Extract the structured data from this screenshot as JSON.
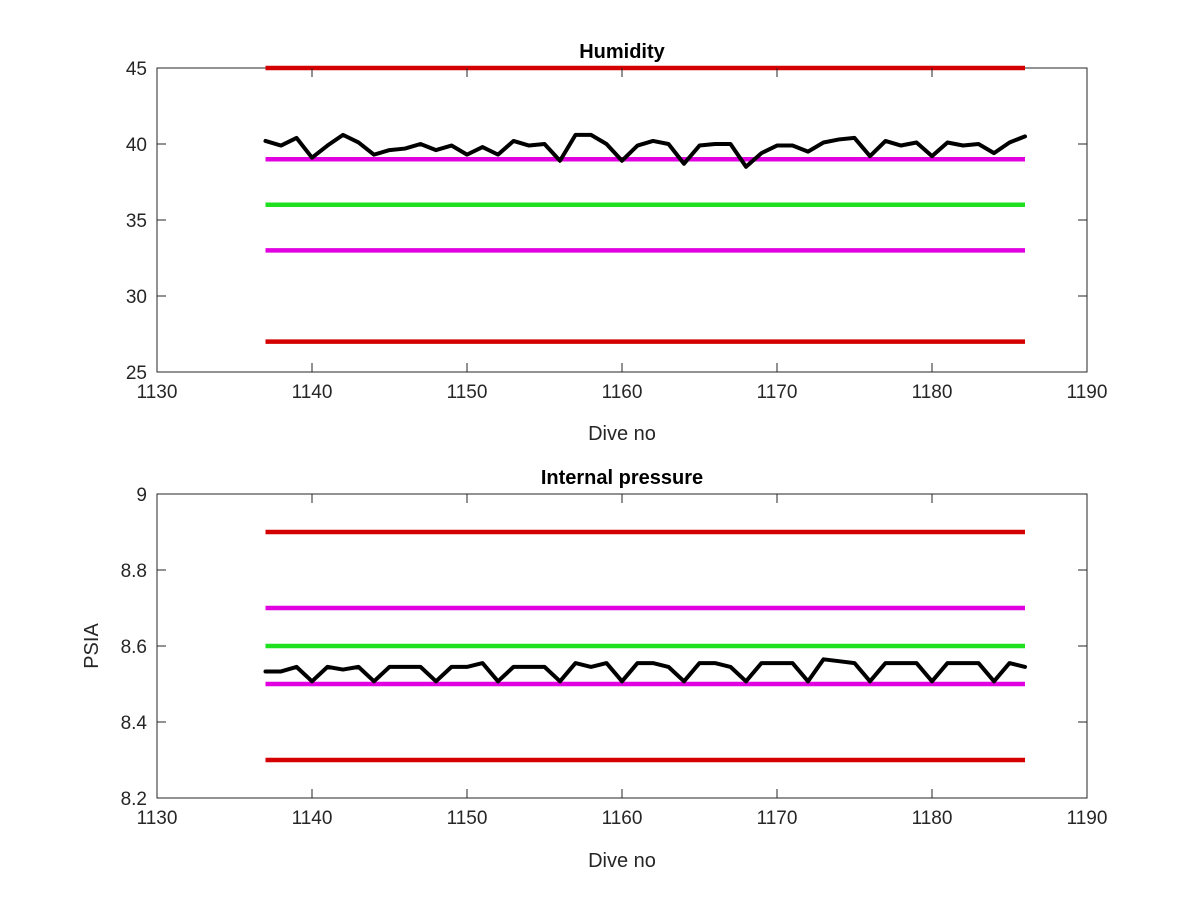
{
  "chart_data": [
    {
      "type": "line",
      "title": "Humidity",
      "xlabel": "Dive no",
      "ylabel": "",
      "xlim": [
        1130,
        1190
      ],
      "ylim": [
        25,
        45
      ],
      "xticks": [
        1130,
        1140,
        1150,
        1160,
        1170,
        1180,
        1190
      ],
      "yticks": [
        25,
        30,
        35,
        40,
        45
      ],
      "grid": false,
      "limit_lines": [
        {
          "y": 45,
          "x": [
            1137,
            1186
          ],
          "color": "#d40000"
        },
        {
          "y": 39,
          "x": [
            1137,
            1186
          ],
          "color": "#e000e0"
        },
        {
          "y": 36,
          "x": [
            1137,
            1186
          ],
          "color": "#1ee01e"
        },
        {
          "y": 33,
          "x": [
            1137,
            1186
          ],
          "color": "#e000e0"
        },
        {
          "y": 27,
          "x": [
            1137,
            1186
          ],
          "color": "#d40000"
        }
      ],
      "series": [
        {
          "color": "#000000",
          "x": [
            1137,
            1138,
            1139,
            1140,
            1141,
            1142,
            1143,
            1144,
            1145,
            1146,
            1147,
            1148,
            1149,
            1150,
            1151,
            1152,
            1153,
            1154,
            1155,
            1156,
            1157,
            1158,
            1159,
            1160,
            1161,
            1162,
            1163,
            1164,
            1165,
            1166,
            1167,
            1168,
            1169,
            1170,
            1171,
            1172,
            1173,
            1174,
            1175,
            1176,
            1177,
            1178,
            1179,
            1180,
            1181,
            1182,
            1183,
            1184,
            1185,
            1186
          ],
          "y": [
            40.2,
            39.9,
            40.4,
            39.1,
            39.9,
            40.6,
            40.1,
            39.3,
            39.6,
            39.7,
            40.0,
            39.6,
            39.9,
            39.3,
            39.8,
            39.3,
            40.2,
            39.9,
            40.0,
            38.9,
            40.6,
            40.6,
            40.0,
            38.9,
            39.9,
            40.2,
            40.0,
            38.7,
            39.9,
            40.0,
            40.0,
            38.5,
            39.4,
            39.9,
            39.9,
            39.5,
            40.1,
            40.3,
            40.4,
            39.2,
            40.2,
            39.9,
            40.1,
            39.2,
            40.1,
            39.9,
            40.0,
            39.4,
            40.1,
            40.5
          ]
        }
      ]
    },
    {
      "type": "line",
      "title": "Internal pressure",
      "xlabel": "Dive no",
      "ylabel": "PSIA",
      "xlim": [
        1130,
        1190
      ],
      "ylim": [
        8.2,
        9.0
      ],
      "xticks": [
        1130,
        1140,
        1150,
        1160,
        1170,
        1180,
        1190
      ],
      "yticks": [
        8.2,
        8.4,
        8.6,
        8.8,
        9
      ],
      "grid": false,
      "limit_lines": [
        {
          "y": 8.9,
          "x": [
            1137,
            1186
          ],
          "color": "#d40000"
        },
        {
          "y": 8.7,
          "x": [
            1137,
            1186
          ],
          "color": "#e000e0"
        },
        {
          "y": 8.6,
          "x": [
            1137,
            1186
          ],
          "color": "#1ee01e"
        },
        {
          "y": 8.5,
          "x": [
            1137,
            1186
          ],
          "color": "#e000e0"
        },
        {
          "y": 8.3,
          "x": [
            1137,
            1186
          ],
          "color": "#d40000"
        }
      ],
      "series": [
        {
          "color": "#000000",
          "x": [
            1137,
            1138,
            1139,
            1140,
            1141,
            1142,
            1143,
            1144,
            1145,
            1146,
            1147,
            1148,
            1149,
            1150,
            1151,
            1152,
            1153,
            1154,
            1155,
            1156,
            1157,
            1158,
            1159,
            1160,
            1161,
            1162,
            1163,
            1164,
            1165,
            1166,
            1167,
            1168,
            1169,
            1170,
            1171,
            1172,
            1173,
            1174,
            1175,
            1176,
            1177,
            1178,
            1179,
            1180,
            1181,
            1182,
            1183,
            1184,
            1185,
            1186
          ],
          "y": [
            8.533,
            8.533,
            8.545,
            8.507,
            8.545,
            8.538,
            8.545,
            8.507,
            8.545,
            8.545,
            8.545,
            8.507,
            8.545,
            8.545,
            8.555,
            8.507,
            8.545,
            8.545,
            8.545,
            8.507,
            8.555,
            8.545,
            8.555,
            8.507,
            8.555,
            8.555,
            8.545,
            8.507,
            8.555,
            8.555,
            8.545,
            8.507,
            8.555,
            8.555,
            8.555,
            8.507,
            8.565,
            8.56,
            8.555,
            8.507,
            8.555,
            8.555,
            8.555,
            8.507,
            8.555,
            8.555,
            8.555,
            8.507,
            8.555,
            8.545
          ]
        }
      ]
    }
  ]
}
